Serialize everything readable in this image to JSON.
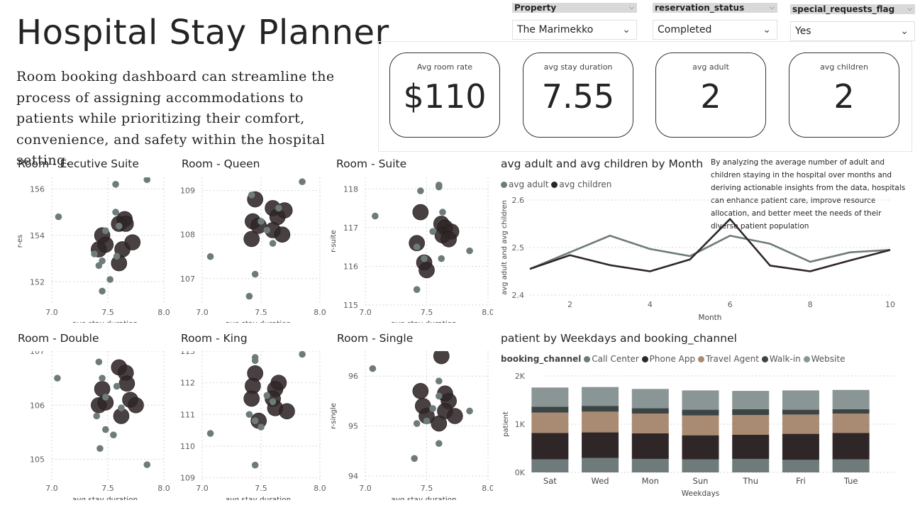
{
  "page": {
    "title": "Hospital Stay Planner",
    "description": "Room booking dashboard can streamline the process of assigning accommodations to patients while prioritizing their comfort, convenience, and safety within the hospital setting."
  },
  "slicers": [
    {
      "label": "Property",
      "value": "The Marimekko"
    },
    {
      "label": "reservation_status",
      "value": "Completed"
    },
    {
      "label": "special_requests_flag",
      "value": "Yes"
    }
  ],
  "kpis": [
    {
      "label": "Avg room rate",
      "value": "$110"
    },
    {
      "label": "avg stay duration",
      "value": "7.55"
    },
    {
      "label": "avg adult",
      "value": "2"
    },
    {
      "label": "avg children",
      "value": "2"
    }
  ],
  "colors": {
    "light": "#6f7b7b",
    "dark": "#2f2627",
    "tan": "#a98a72",
    "grid": "#d6d6d6"
  },
  "line_note": "By analyzing the average number of adult and children staying in the hospital over months and deriving actionable insights from the data, hospitals can enhance patient care, improve resource allocation, and better meet the needs of their diverse patient population",
  "chart_data": [
    {
      "type": "scatter",
      "title": "Room - Eecutive Suite",
      "xlabel": "avg stay duration",
      "ylabel": "r-es",
      "xlim": [
        7.0,
        8.0
      ],
      "ylim": [
        151,
        156.5
      ],
      "xticks": [
        "7.0",
        "7.5",
        "8.0"
      ],
      "yticks": [
        "152",
        "154",
        "156"
      ],
      "small": [
        [
          7.06,
          154.8
        ],
        [
          7.57,
          156.2
        ],
        [
          7.85,
          156.4
        ],
        [
          7.57,
          155.0
        ],
        [
          7.38,
          153.2
        ],
        [
          7.42,
          152.7
        ],
        [
          7.45,
          152.9
        ],
        [
          7.52,
          152.1
        ],
        [
          7.45,
          151.6
        ],
        [
          7.58,
          153.1
        ],
        [
          7.48,
          154.2
        ],
        [
          7.6,
          154.4
        ]
      ],
      "large": [
        [
          7.45,
          154.0
        ],
        [
          7.42,
          153.4
        ],
        [
          7.48,
          153.6
        ],
        [
          7.6,
          154.5
        ],
        [
          7.65,
          154.7
        ],
        [
          7.66,
          154.5
        ],
        [
          7.63,
          153.4
        ],
        [
          7.72,
          153.7
        ],
        [
          7.6,
          152.8
        ]
      ]
    },
    {
      "type": "scatter",
      "title": "Room - Queen",
      "xlabel": "avg stay duration",
      "ylabel": "",
      "xlim": [
        7.0,
        8.0
      ],
      "ylim": [
        106.4,
        109.3
      ],
      "xticks": [
        "7.0",
        "7.5",
        "8.0"
      ],
      "yticks": [
        "107",
        "108",
        "109"
      ],
      "small": [
        [
          7.07,
          107.5
        ],
        [
          7.4,
          106.6
        ],
        [
          7.45,
          107.1
        ],
        [
          7.85,
          109.2
        ],
        [
          7.42,
          108.9
        ],
        [
          7.5,
          108.3
        ],
        [
          7.55,
          108.1
        ],
        [
          7.6,
          107.8
        ],
        [
          7.65,
          108.6
        ]
      ],
      "large": [
        [
          7.45,
          108.8
        ],
        [
          7.43,
          108.3
        ],
        [
          7.42,
          107.9
        ],
        [
          7.48,
          108.2
        ],
        [
          7.6,
          108.6
        ],
        [
          7.64,
          108.4
        ],
        [
          7.6,
          108.1
        ],
        [
          7.7,
          108.55
        ],
        [
          7.68,
          108.0
        ]
      ]
    },
    {
      "type": "scatter",
      "title": "Room - Suite",
      "xlabel": "avg stay duration",
      "ylabel": "r-suite",
      "xlim": [
        7.0,
        8.0
      ],
      "ylim": [
        115,
        118.3
      ],
      "xticks": [
        "7.0",
        "7.5",
        "8.0"
      ],
      "yticks": [
        "115",
        "116",
        "117",
        "118"
      ],
      "small": [
        [
          7.08,
          117.3
        ],
        [
          7.45,
          117.95
        ],
        [
          7.6,
          118.05
        ],
        [
          7.6,
          118.1
        ],
        [
          7.55,
          116.9
        ],
        [
          7.42,
          116.5
        ],
        [
          7.48,
          116.2
        ],
        [
          7.42,
          115.4
        ],
        [
          7.62,
          116.2
        ],
        [
          7.85,
          116.4
        ],
        [
          7.63,
          117.4
        ]
      ],
      "large": [
        [
          7.45,
          117.4
        ],
        [
          7.42,
          116.6
        ],
        [
          7.48,
          116.1
        ],
        [
          7.5,
          115.9
        ],
        [
          7.62,
          117.1
        ],
        [
          7.65,
          117.0
        ],
        [
          7.63,
          116.8
        ],
        [
          7.7,
          116.9
        ],
        [
          7.68,
          116.7
        ]
      ]
    },
    {
      "type": "scatter",
      "title": "Room - Double",
      "xlabel": "avg stay duration",
      "ylabel": "",
      "xlim": [
        7.0,
        8.0
      ],
      "ylim": [
        104.6,
        107.0
      ],
      "xticks": [
        "7.0",
        "7.5",
        "8.0"
      ],
      "yticks": [
        "105",
        "106",
        "107"
      ],
      "small": [
        [
          7.05,
          106.5
        ],
        [
          7.42,
          106.8
        ],
        [
          7.45,
          106.5
        ],
        [
          7.48,
          106.15
        ],
        [
          7.4,
          105.8
        ],
        [
          7.48,
          105.55
        ],
        [
          7.55,
          105.45
        ],
        [
          7.43,
          105.2
        ],
        [
          7.85,
          104.9
        ],
        [
          7.58,
          106.35
        ],
        [
          7.62,
          105.95
        ]
      ],
      "large": [
        [
          7.45,
          106.3
        ],
        [
          7.42,
          106.0
        ],
        [
          7.48,
          106.05
        ],
        [
          7.6,
          106.7
        ],
        [
          7.66,
          106.6
        ],
        [
          7.67,
          106.4
        ],
        [
          7.62,
          105.8
        ],
        [
          7.7,
          106.1
        ],
        [
          7.75,
          106.0
        ]
      ]
    },
    {
      "type": "scatter",
      "title": "Room - King",
      "xlabel": "avg stay duration",
      "ylabel": "",
      "xlim": [
        7.0,
        8.0
      ],
      "ylim": [
        108.9,
        113.0
      ],
      "xticks": [
        "7.0",
        "7.5",
        "8.0"
      ],
      "yticks": [
        "109",
        "110",
        "111",
        "112",
        "113"
      ],
      "small": [
        [
          7.07,
          110.4
        ],
        [
          7.45,
          112.8
        ],
        [
          7.45,
          112.7
        ],
        [
          7.85,
          112.9
        ],
        [
          7.4,
          111.0
        ],
        [
          7.45,
          110.8
        ],
        [
          7.5,
          110.6
        ],
        [
          7.45,
          109.4
        ],
        [
          7.55,
          111.6
        ],
        [
          7.6,
          111.4
        ]
      ],
      "large": [
        [
          7.45,
          112.3
        ],
        [
          7.43,
          111.9
        ],
        [
          7.42,
          111.5
        ],
        [
          7.48,
          110.8
        ],
        [
          7.65,
          112.0
        ],
        [
          7.62,
          111.8
        ],
        [
          7.6,
          111.5
        ],
        [
          7.62,
          111.2
        ],
        [
          7.72,
          111.1
        ]
      ]
    },
    {
      "type": "scatter",
      "title": "Room - Single",
      "xlabel": "avg stay duration",
      "ylabel": "r-single",
      "xlim": [
        7.0,
        8.0
      ],
      "ylim": [
        93.9,
        96.5
      ],
      "xticks": [
        "7.0",
        "7.5",
        "8.0"
      ],
      "yticks": [
        "94",
        "95",
        "96"
      ],
      "small": [
        [
          7.06,
          96.15
        ],
        [
          7.6,
          95.9
        ],
        [
          7.6,
          95.6
        ],
        [
          7.42,
          95.05
        ],
        [
          7.5,
          95.1
        ],
        [
          7.55,
          95.35
        ],
        [
          7.4,
          94.35
        ],
        [
          7.6,
          94.65
        ],
        [
          7.85,
          95.3
        ]
      ],
      "large": [
        [
          7.62,
          96.4
        ],
        [
          7.45,
          95.7
        ],
        [
          7.47,
          95.4
        ],
        [
          7.5,
          95.2
        ],
        [
          7.65,
          95.65
        ],
        [
          7.68,
          95.5
        ],
        [
          7.65,
          95.3
        ],
        [
          7.6,
          95.05
        ],
        [
          7.73,
          95.2
        ]
      ]
    },
    {
      "type": "line",
      "title": "avg adult and avg children by Month",
      "xlabel": "Month",
      "ylabel": "avg adult and avg children",
      "x": [
        1,
        2,
        3,
        4,
        5,
        6,
        7,
        8,
        9,
        10
      ],
      "xlim": [
        1,
        10
      ],
      "ylim": [
        2.4,
        2.6
      ],
      "xticks": [
        "2",
        "4",
        "6",
        "8",
        "10"
      ],
      "yticks": [
        "2.4",
        "2.5",
        "2.6"
      ],
      "series": [
        {
          "name": "avg adult",
          "color": "#6f7b7b",
          "values": [
            2.455,
            2.49,
            2.525,
            2.497,
            2.482,
            2.525,
            2.508,
            2.47,
            2.49,
            2.495
          ]
        },
        {
          "name": "avg children",
          "color": "#2f2627",
          "values": [
            2.455,
            2.484,
            2.463,
            2.45,
            2.475,
            2.56,
            2.462,
            2.45,
            2.473,
            2.495
          ]
        }
      ]
    },
    {
      "type": "bar",
      "title": "patient by Weekdays and booking_channel",
      "xlabel": "Weekdays",
      "ylabel": "patient",
      "legend_title": "booking_channel",
      "stacked": true,
      "ylim": [
        0,
        2000
      ],
      "yticks": [
        "0K",
        "1K",
        "2K"
      ],
      "categories": [
        "Sat",
        "Wed",
        "Mon",
        "Sun",
        "Thu",
        "Fri",
        "Tue"
      ],
      "series": [
        {
          "name": "Call Center",
          "color": "#6f7b7b",
          "values": [
            270,
            300,
            280,
            270,
            280,
            260,
            270
          ]
        },
        {
          "name": "Phone App",
          "color": "#2f2627",
          "values": [
            550,
            530,
            530,
            500,
            500,
            540,
            550
          ]
        },
        {
          "name": "Travel Agent",
          "color": "#a98a72",
          "values": [
            420,
            430,
            410,
            410,
            410,
            400,
            400
          ]
        },
        {
          "name": "Walk-in",
          "color": "#3d4444",
          "values": [
            120,
            120,
            110,
            120,
            120,
            100,
            90
          ]
        },
        {
          "name": "Website",
          "color": "#8a9596",
          "values": [
            400,
            390,
            400,
            400,
            380,
            400,
            400
          ]
        }
      ]
    }
  ]
}
